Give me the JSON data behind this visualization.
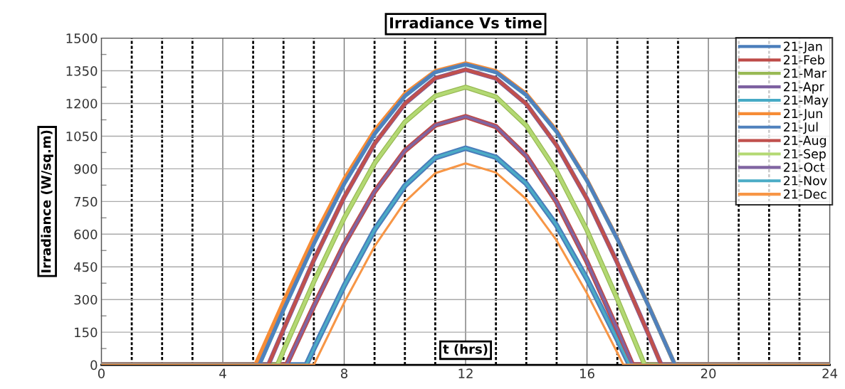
{
  "chart_data": {
    "type": "line",
    "title": "Irradiance Vs time",
    "xlabel": "t (hrs)",
    "ylabel": "Irradiance (W/sq.m)",
    "xlim": [
      0,
      24
    ],
    "ylim": [
      0,
      1500
    ],
    "xticks": [
      0,
      {
        "value": 1,
        "label": null
      },
      {
        "value": 2,
        "label": null
      },
      {
        "value": 3,
        "label": null
      },
      4,
      {
        "value": 5,
        "label": null
      },
      {
        "value": 6,
        "label": null
      },
      {
        "value": 7,
        "label": null
      },
      8,
      {
        "value": 9,
        "label": null
      },
      {
        "value": 10,
        "label": null
      },
      {
        "value": 11,
        "label": null
      },
      12,
      {
        "value": 13,
        "label": null
      },
      {
        "value": 14,
        "label": null
      },
      {
        "value": 15,
        "label": null
      },
      16,
      {
        "value": 17,
        "label": null
      },
      {
        "value": 18,
        "label": null
      },
      {
        "value": 19,
        "label": null
      },
      20,
      {
        "value": 21,
        "label": null
      },
      {
        "value": 22,
        "label": null
      },
      {
        "value": 23,
        "label": null
      },
      24
    ],
    "yticks": [
      0,
      150,
      300,
      450,
      600,
      750,
      900,
      1050,
      1200,
      1350,
      1500
    ],
    "grid": true,
    "legend": "top right",
    "marker": "none",
    "line_style": "solid",
    "series": [
      {
        "name": "21-Jan",
        "color": "#4a7ebb",
        "x": [
          0,
          6.75,
          7,
          8,
          9,
          10,
          11,
          12,
          13,
          14,
          15,
          16,
          17,
          17.4,
          24
        ],
        "values": [
          0,
          0,
          75,
          363,
          620,
          822,
          951,
          995,
          953,
          832,
          640,
          394,
          116,
          0,
          0
        ]
      },
      {
        "name": "21-Feb",
        "color": "#be4b48",
        "x": [
          0,
          6.1,
          7,
          8,
          9,
          10,
          11,
          12,
          13,
          14,
          15,
          16,
          17,
          17.5,
          24
        ],
        "values": [
          0,
          0,
          270,
          553,
          795,
          983,
          1100,
          1140,
          1094,
          959,
          747,
          473,
          163,
          0,
          0
        ]
      },
      {
        "name": "21-Mar",
        "color": "#98b954",
        "x": [
          0,
          5.8,
          6,
          7,
          8,
          9,
          10,
          11,
          12,
          13,
          14,
          15,
          16,
          17,
          17.9,
          24
        ],
        "values": [
          0,
          0,
          65,
          381,
          674,
          925,
          1115,
          1234,
          1275,
          1230,
          1099,
          889,
          618,
          302,
          0,
          0
        ]
      },
      {
        "name": "21-Apr",
        "color": "#7d60a0",
        "x": [
          0,
          5.5,
          6,
          7,
          8,
          9,
          10,
          11,
          12,
          13,
          14,
          15,
          16,
          17,
          18,
          18.45,
          24
        ],
        "values": [
          0,
          0,
          163,
          481,
          770,
          1015,
          1199,
          1316,
          1355,
          1315,
          1198,
          1008,
          762,
          468,
          149,
          0,
          0
        ]
      },
      {
        "name": "21-May",
        "color": "#46aac5",
        "x": [
          0,
          5.2,
          6,
          7,
          8,
          9,
          10,
          11,
          12,
          13,
          14,
          15,
          16,
          17,
          18,
          18.9,
          24
        ],
        "values": [
          0,
          0,
          254,
          557,
          832,
          1061,
          1235,
          1344,
          1380,
          1344,
          1239,
          1071,
          846,
          578,
          280,
          0,
          0
        ]
      },
      {
        "name": "21-Jun",
        "color": "#f68c36",
        "x": [
          0,
          5.07,
          6,
          7,
          8,
          9,
          10,
          11,
          12,
          13,
          14,
          15,
          16,
          17,
          18,
          18.9,
          24
        ],
        "values": [
          0,
          0,
          290,
          587,
          853,
          1076,
          1245,
          1349,
          1385,
          1349,
          1244,
          1075,
          849,
          580,
          281,
          0,
          0
        ]
      },
      {
        "name": "21-Jul",
        "color": "#4f81bd",
        "x": [
          0,
          5.2,
          6,
          7,
          8,
          9,
          10,
          11,
          12,
          13,
          14,
          15,
          16,
          17,
          18,
          18.9,
          24
        ],
        "values": [
          0,
          0,
          254,
          557,
          832,
          1061,
          1235,
          1344,
          1380,
          1344,
          1239,
          1071,
          846,
          578,
          280,
          0,
          0
        ]
      },
      {
        "name": "21-Aug",
        "color": "#c0504d",
        "x": [
          0,
          5.5,
          6,
          7,
          8,
          9,
          10,
          11,
          12,
          13,
          14,
          15,
          16,
          17,
          18,
          18.45,
          24
        ],
        "values": [
          0,
          0,
          163,
          481,
          770,
          1015,
          1199,
          1316,
          1355,
          1315,
          1198,
          1008,
          762,
          468,
          149,
          0,
          0
        ]
      },
      {
        "name": "21-Sep",
        "color": "#b3d973",
        "x": [
          0,
          5.8,
          6,
          7,
          8,
          9,
          10,
          11,
          12,
          13,
          14,
          15,
          16,
          17,
          17.9,
          24
        ],
        "values": [
          0,
          0,
          65,
          381,
          674,
          925,
          1115,
          1234,
          1275,
          1230,
          1099,
          889,
          618,
          302,
          0,
          0
        ]
      },
      {
        "name": "21-Oct",
        "color": "#8064a2",
        "x": [
          0,
          6.1,
          7,
          8,
          9,
          10,
          11,
          12,
          13,
          14,
          15,
          16,
          17,
          17.5,
          24
        ],
        "values": [
          0,
          0,
          270,
          553,
          795,
          983,
          1100,
          1140,
          1094,
          959,
          747,
          473,
          163,
          0,
          0
        ]
      },
      {
        "name": "21-Nov",
        "color": "#4bacc6",
        "x": [
          0,
          6.75,
          7,
          8,
          9,
          10,
          11,
          12,
          13,
          14,
          15,
          16,
          17,
          17.4,
          24
        ],
        "values": [
          0,
          0,
          75,
          363,
          620,
          822,
          951,
          995,
          953,
          832,
          640,
          394,
          116,
          0,
          0
        ]
      },
      {
        "name": "21-Dec",
        "color": "#f79646",
        "x": [
          0,
          7,
          8,
          9,
          10,
          11,
          12,
          13,
          14,
          15,
          16,
          17,
          17.2,
          24
        ],
        "values": [
          0,
          0,
          286,
          544,
          748,
          880,
          925,
          883,
          761,
          571,
          328,
          56,
          0,
          0
        ]
      }
    ]
  }
}
